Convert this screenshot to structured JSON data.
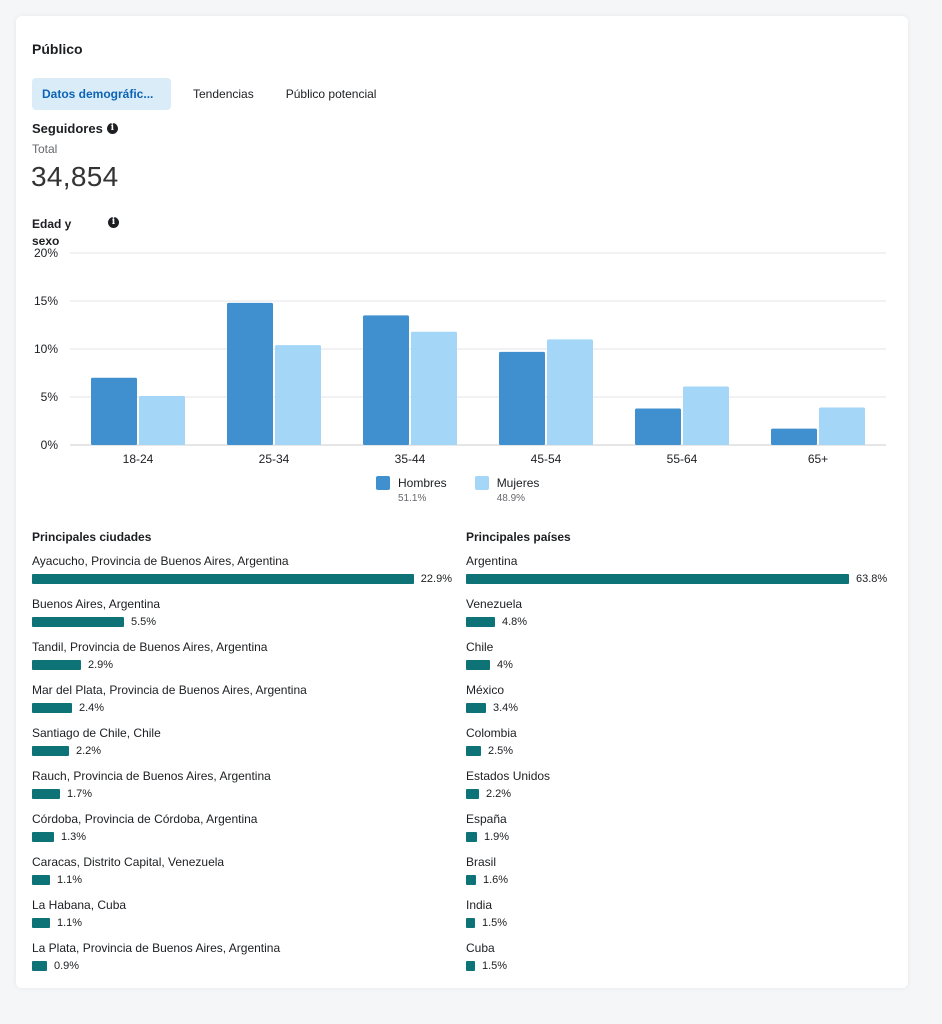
{
  "title": "Público",
  "tabs": [
    {
      "label": "Datos demográfic...",
      "active": true
    },
    {
      "label": "Tendencias",
      "active": false
    },
    {
      "label": "Público potencial",
      "active": false
    }
  ],
  "followers": {
    "title": "Seguidores",
    "total_label": "Total",
    "total_value": "34,854"
  },
  "age_gender_label": "Edad y sexo",
  "chart_data": {
    "type": "bar",
    "title": "Edad y sexo",
    "categories": [
      "18-24",
      "25-34",
      "35-44",
      "45-54",
      "55-64",
      "65+"
    ],
    "series": [
      {
        "name": "Hombres",
        "share": "51.1%",
        "color": "#4090d0",
        "values": [
          7.0,
          14.8,
          13.5,
          9.7,
          3.8,
          1.7
        ]
      },
      {
        "name": "Mujeres",
        "share": "48.9%",
        "color": "#a3d6f7",
        "values": [
          5.1,
          10.4,
          11.8,
          11.0,
          6.1,
          3.9
        ]
      }
    ],
    "y_ticks": [
      "0%",
      "5%",
      "10%",
      "15%",
      "20%"
    ],
    "ylim": [
      0,
      20
    ],
    "grid": true,
    "legend": "bottom-center"
  },
  "cities": {
    "title": "Principales ciudades",
    "max": 22.9,
    "items": [
      {
        "name": "Ayacucho, Provincia de Buenos Aires, Argentina",
        "value": 22.9,
        "label": "22.9%"
      },
      {
        "name": "Buenos Aires, Argentina",
        "value": 5.5,
        "label": "5.5%"
      },
      {
        "name": "Tandil, Provincia de Buenos Aires, Argentina",
        "value": 2.9,
        "label": "2.9%"
      },
      {
        "name": "Mar del Plata, Provincia de Buenos Aires, Argentina",
        "value": 2.4,
        "label": "2.4%"
      },
      {
        "name": "Santiago de Chile, Chile",
        "value": 2.2,
        "label": "2.2%"
      },
      {
        "name": "Rauch, Provincia de Buenos Aires, Argentina",
        "value": 1.7,
        "label": "1.7%"
      },
      {
        "name": "Córdoba, Provincia de Córdoba, Argentina",
        "value": 1.3,
        "label": "1.3%"
      },
      {
        "name": "Caracas, Distrito Capital, Venezuela",
        "value": 1.1,
        "label": "1.1%"
      },
      {
        "name": "La Habana, Cuba",
        "value": 1.1,
        "label": "1.1%"
      },
      {
        "name": "La Plata, Provincia de Buenos Aires, Argentina",
        "value": 0.9,
        "label": "0.9%"
      }
    ]
  },
  "countries": {
    "title": "Principales países",
    "max": 63.8,
    "items": [
      {
        "name": "Argentina",
        "value": 63.8,
        "label": "63.8%"
      },
      {
        "name": "Venezuela",
        "value": 4.8,
        "label": "4.8%"
      },
      {
        "name": "Chile",
        "value": 4.0,
        "label": "4%"
      },
      {
        "name": "México",
        "value": 3.4,
        "label": "3.4%"
      },
      {
        "name": "Colombia",
        "value": 2.5,
        "label": "2.5%"
      },
      {
        "name": "Estados Unidos",
        "value": 2.2,
        "label": "2.2%"
      },
      {
        "name": "España",
        "value": 1.9,
        "label": "1.9%"
      },
      {
        "name": "Brasil",
        "value": 1.6,
        "label": "1.6%"
      },
      {
        "name": "India",
        "value": 1.5,
        "label": "1.5%"
      },
      {
        "name": "Cuba",
        "value": 1.5,
        "label": "1.5%"
      }
    ]
  },
  "colors": {
    "bar_list": "#0d7377",
    "tab_active_bg": "#dbecf9",
    "tab_active_text": "#0b64b4"
  }
}
